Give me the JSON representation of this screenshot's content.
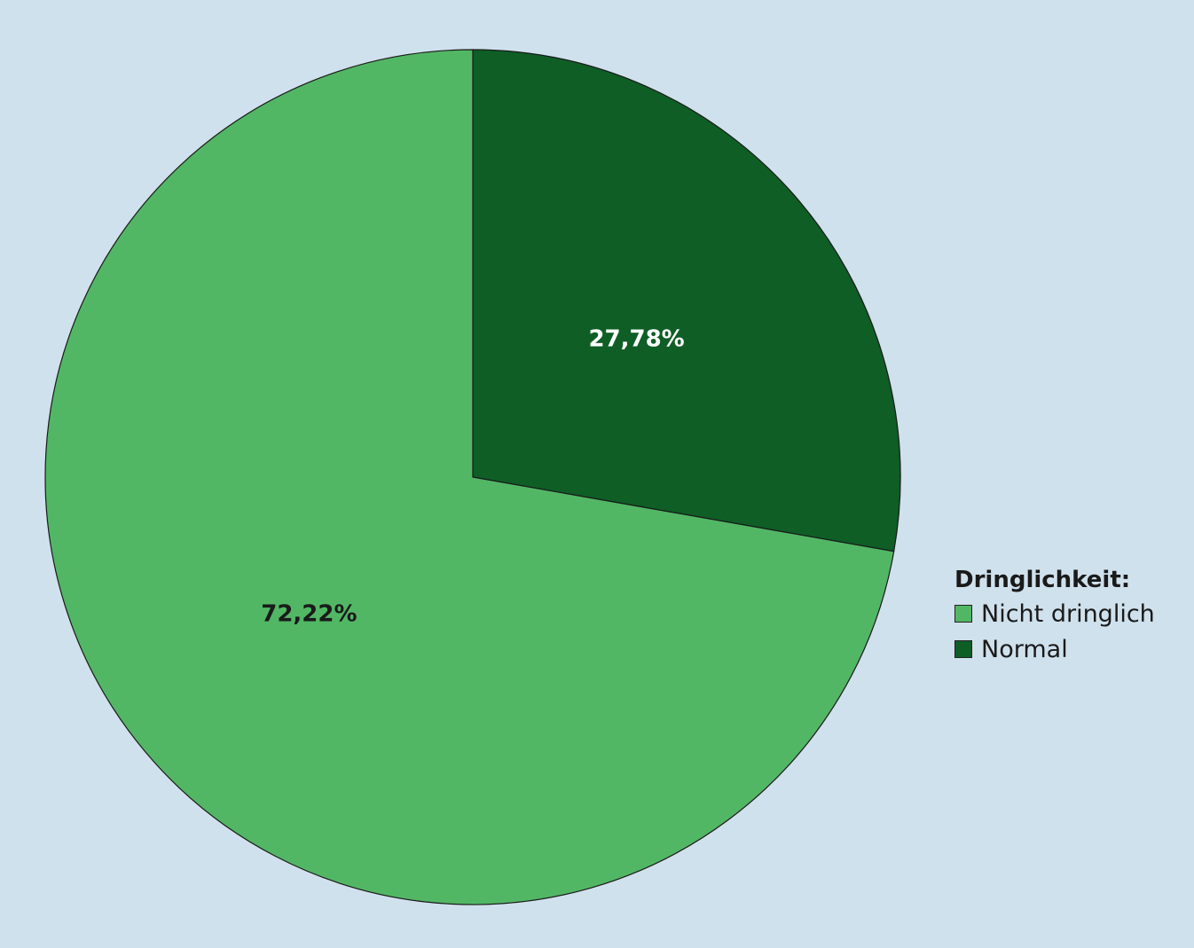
{
  "chart_data": {
    "type": "pie",
    "title": "",
    "start_angle_deg": 0,
    "direction": "clockwise",
    "slices": [
      {
        "name": "Normal",
        "value": 27.78,
        "label": "27,78%",
        "color": "#0e5e26",
        "label_color": "#ffffff"
      },
      {
        "name": "Nicht dringlich",
        "value": 72.22,
        "label": "72,22%",
        "color": "#52b765",
        "label_color": "#1a1a1a"
      }
    ],
    "legend": {
      "title": "Dringlichkeit:",
      "placement": "right",
      "items": [
        {
          "label": "Nicht dringlich",
          "color": "#52b765"
        },
        {
          "label": "Normal",
          "color": "#0e5e26"
        }
      ]
    }
  },
  "colors": {
    "background": "#cfe1ec",
    "outline": "#1a1a1a"
  }
}
